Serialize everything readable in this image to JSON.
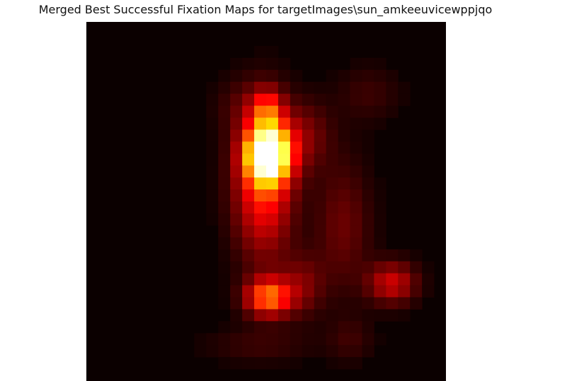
{
  "chart_data": {
    "type": "heatmap",
    "title": "Merged Best Successful Fixation Maps for targetImages\\sun_amkeeuvicewppjqo",
    "xlabel": "",
    "ylabel": "",
    "colormap": "hot",
    "grid": false,
    "axes_visible": false,
    "rows": 30,
    "cols": 30,
    "background_color": "#0b0000",
    "blobs": [
      {
        "cx": 14.7,
        "cy": 10.5,
        "sx": 1.25,
        "sy": 1.6,
        "amp": 1.0
      },
      {
        "cx": 14.3,
        "cy": 13.0,
        "sx": 1.7,
        "sy": 4.2,
        "amp": 0.42
      },
      {
        "cx": 14.7,
        "cy": 22.5,
        "sx": 1.3,
        "sy": 1.1,
        "amp": 0.52
      },
      {
        "cx": 14.6,
        "cy": 6.8,
        "sx": 0.9,
        "sy": 1.2,
        "amp": 0.32
      },
      {
        "cx": 17.8,
        "cy": 9.0,
        "sx": 1.5,
        "sy": 2.0,
        "amp": 0.15
      },
      {
        "cx": 17.5,
        "cy": 21.5,
        "sx": 1.3,
        "sy": 1.8,
        "amp": 0.16
      },
      {
        "cx": 20.9,
        "cy": 16.5,
        "sx": 1.6,
        "sy": 3.8,
        "amp": 0.14
      },
      {
        "cx": 25.0,
        "cy": 21.3,
        "sx": 1.4,
        "sy": 1.2,
        "amp": 0.29
      },
      {
        "cx": 23.0,
        "cy": 5.5,
        "sx": 1.8,
        "sy": 1.6,
        "amp": 0.07
      },
      {
        "cx": 12.5,
        "cy": 6.5,
        "sx": 1.6,
        "sy": 1.6,
        "amp": 0.07
      },
      {
        "cx": 21.5,
        "cy": 26.0,
        "sx": 1.3,
        "sy": 1.3,
        "amp": 0.07
      },
      {
        "cx": 14.0,
        "cy": 26.5,
        "sx": 3.0,
        "sy": 1.0,
        "amp": 0.07
      }
    ]
  }
}
